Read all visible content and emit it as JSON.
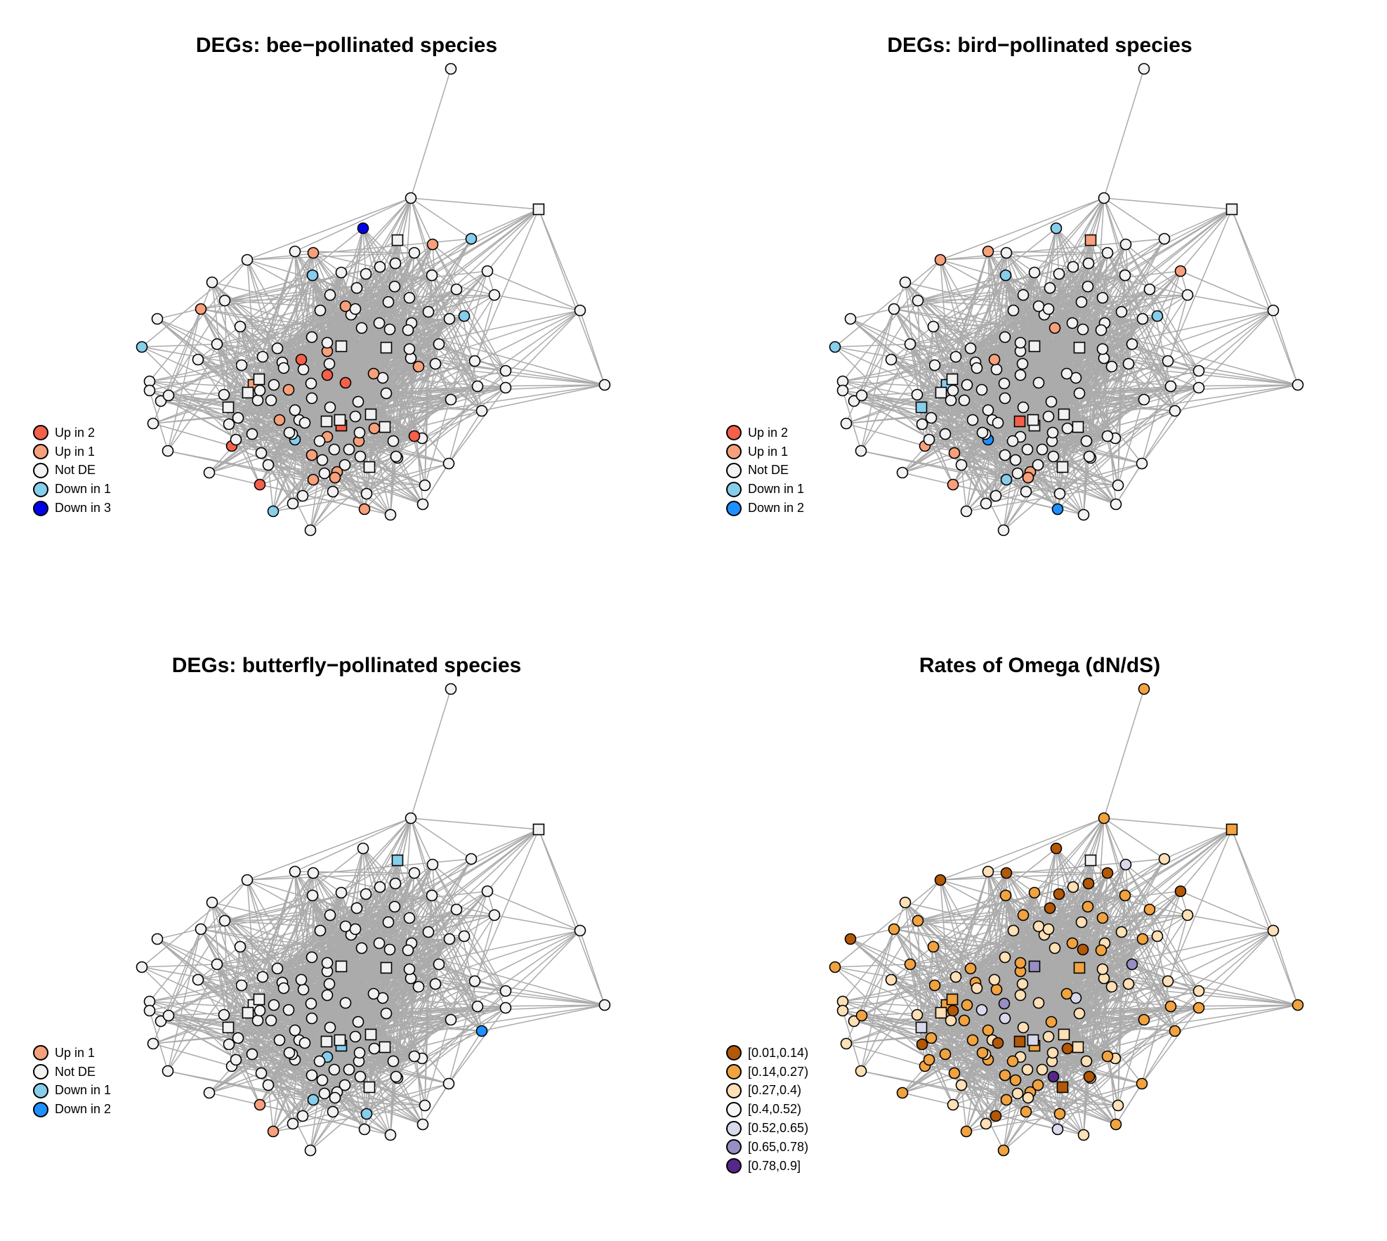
{
  "panels": [
    {
      "title": "DEGs: bee−pollinated species",
      "legend": [
        {
          "label": "Up in 2",
          "color": "#f5604a"
        },
        {
          "label": "Up in 1",
          "color": "#f7a07c"
        },
        {
          "label": "Not DE",
          "color": "#f2f2f2"
        },
        {
          "label": "Down in 1",
          "color": "#87ceeb"
        },
        {
          "label": "Down in 3",
          "color": "#0000ee"
        }
      ]
    },
    {
      "title": "DEGs: bird−pollinated species",
      "legend": [
        {
          "label": "Up in 2",
          "color": "#f5604a"
        },
        {
          "label": "Up in 1",
          "color": "#f7a07c"
        },
        {
          "label": "Not DE",
          "color": "#f2f2f2"
        },
        {
          "label": "Down in 1",
          "color": "#87ceeb"
        },
        {
          "label": "Down in 2",
          "color": "#1e90ff"
        }
      ]
    },
    {
      "title": "DEGs: butterfly−pollinated species",
      "legend": [
        {
          "label": "Up in 1",
          "color": "#f7a07c"
        },
        {
          "label": "Not DE",
          "color": "#f2f2f2"
        },
        {
          "label": "Down in 1",
          "color": "#87ceeb"
        },
        {
          "label": "Down in 2",
          "color": "#1e90ff"
        }
      ]
    },
    {
      "title": "Rates of Omega (dN/dS)",
      "legend": [
        {
          "label": "[0.01,0.14)",
          "color": "#b35806"
        },
        {
          "label": "[0.14,0.27)",
          "color": "#f1a340"
        },
        {
          "label": "[0.27,0.4)",
          "color": "#fee0b6"
        },
        {
          "label": "[0.4,0.52)",
          "color": "#f7f7f7"
        },
        {
          "label": "[0.52,0.65)",
          "color": "#d8daeb"
        },
        {
          "label": "[0.65,0.78)",
          "color": "#998ec3"
        },
        {
          "label": "[0.78,0.9]",
          "color": "#542788"
        }
      ]
    }
  ]
}
